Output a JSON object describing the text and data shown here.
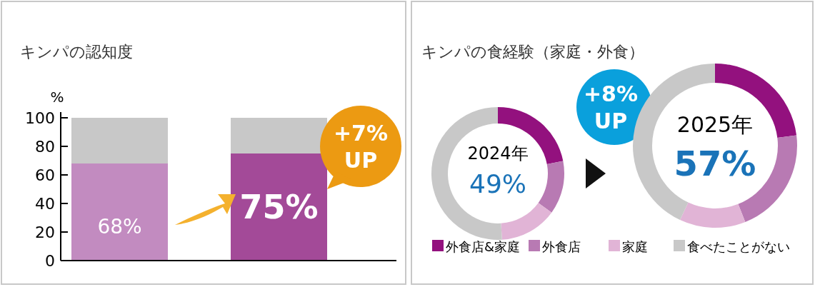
{
  "chart_data": [
    {
      "type": "bar",
      "title": "キンパの認知度",
      "ylabel": "%",
      "categories": [
        null,
        null
      ],
      "stacked": true,
      "ylim": [
        0,
        104
      ],
      "yticks": [
        0,
        20,
        40,
        60,
        80,
        100
      ],
      "tick_labels": "y",
      "series": [
        {
          "colors": [
            "#c28bc0",
            "#a34a98"
          ],
          "values": [
            68,
            75
          ],
          "value_labels": [
            "68%",
            "75%"
          ]
        },
        {
          "color": "#c8c8c8",
          "values": [
            32,
            25
          ]
        }
      ],
      "annotations": [
        "+7% UP"
      ]
    },
    {
      "type": "donut",
      "title": "キンパの食経験（家庭・外食）",
      "categories": [
        "外食店&家庭",
        "外食店",
        "家庭",
        "食べたことがない"
      ],
      "colors": [
        "#93117e",
        "#b87ab3",
        "#e1b4d6",
        "#c8c8c8"
      ],
      "values": [
        22,
        13,
        14,
        51
      ],
      "legend": "bottom",
      "annotations": [
        "2024年",
        "49%"
      ]
    },
    {
      "type": "donut",
      "categories": [
        null,
        null,
        null,
        null
      ],
      "colors": [
        "#93117e",
        "#b87ab3",
        "#e1b4d6",
        "#c8c8c8"
      ],
      "values": [
        23,
        21,
        13,
        43
      ],
      "annotations": [
        "+8% UP",
        "2025年",
        "57%"
      ]
    }
  ]
}
